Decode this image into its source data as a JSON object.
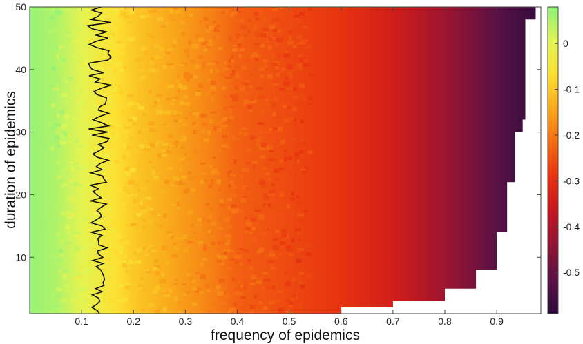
{
  "chart_data": {
    "type": "heatmap",
    "title": "",
    "xlabel": "frequency of epidemics",
    "ylabel": "duration of epidemics",
    "xlim": [
      0,
      0.985
    ],
    "ylim": [
      1,
      50
    ],
    "x_ticks": [
      "0.1",
      "0.2",
      "0.3",
      "0.4",
      "0.5",
      "0.6",
      "0.7",
      "0.8",
      "0.9"
    ],
    "y_ticks": [
      "10",
      "20",
      "30",
      "40",
      "50"
    ],
    "colorbar": {
      "limits": [
        -0.59,
        0.08
      ],
      "ticks": [
        "0",
        "-0.1",
        "-0.2",
        "-0.3",
        "-0.4",
        "-0.5"
      ],
      "colormap": [
        "#2e0a3d",
        "#5c1246",
        "#8f1434",
        "#c4141f",
        "#e8300f",
        "#f46a12",
        "#f9a81a",
        "#fde030",
        "#e2f553",
        "#8df27a"
      ]
    },
    "value_profile_by_frequency": [
      {
        "x": 0.0,
        "value": 0.07
      },
      {
        "x": 0.05,
        "value": 0.05
      },
      {
        "x": 0.1,
        "value": 0.0
      },
      {
        "x": 0.13,
        "value": -0.03
      },
      {
        "x": 0.17,
        "value": -0.07
      },
      {
        "x": 0.2,
        "value": -0.1
      },
      {
        "x": 0.25,
        "value": -0.13
      },
      {
        "x": 0.3,
        "value": -0.16
      },
      {
        "x": 0.35,
        "value": -0.19
      },
      {
        "x": 0.4,
        "value": -0.23
      },
      {
        "x": 0.5,
        "value": -0.26
      },
      {
        "x": 0.6,
        "value": -0.29
      },
      {
        "x": 0.7,
        "value": -0.34
      },
      {
        "x": 0.8,
        "value": -0.42
      },
      {
        "x": 0.9,
        "value": -0.52
      },
      {
        "x": 0.98,
        "value": -0.58
      }
    ],
    "undefined_region_boundary": [
      {
        "x": 0.6,
        "y": 1
      },
      {
        "x": 0.6,
        "y": 2.0
      },
      {
        "x": 0.7,
        "y": 3.0
      },
      {
        "x": 0.8,
        "y": 5.0
      },
      {
        "x": 0.86,
        "y": 8.0
      },
      {
        "x": 0.9,
        "y": 14.0
      },
      {
        "x": 0.92,
        "y": 22.0
      },
      {
        "x": 0.935,
        "y": 30.0
      },
      {
        "x": 0.95,
        "y": 32.0
      },
      {
        "x": 0.955,
        "y": 48.0
      },
      {
        "x": 0.975,
        "y": 50
      }
    ],
    "zero_contour": {
      "level": 0,
      "x_center": 0.135,
      "x_jitter": 0.025
    },
    "grid": false,
    "legend": "colorbar-right"
  }
}
